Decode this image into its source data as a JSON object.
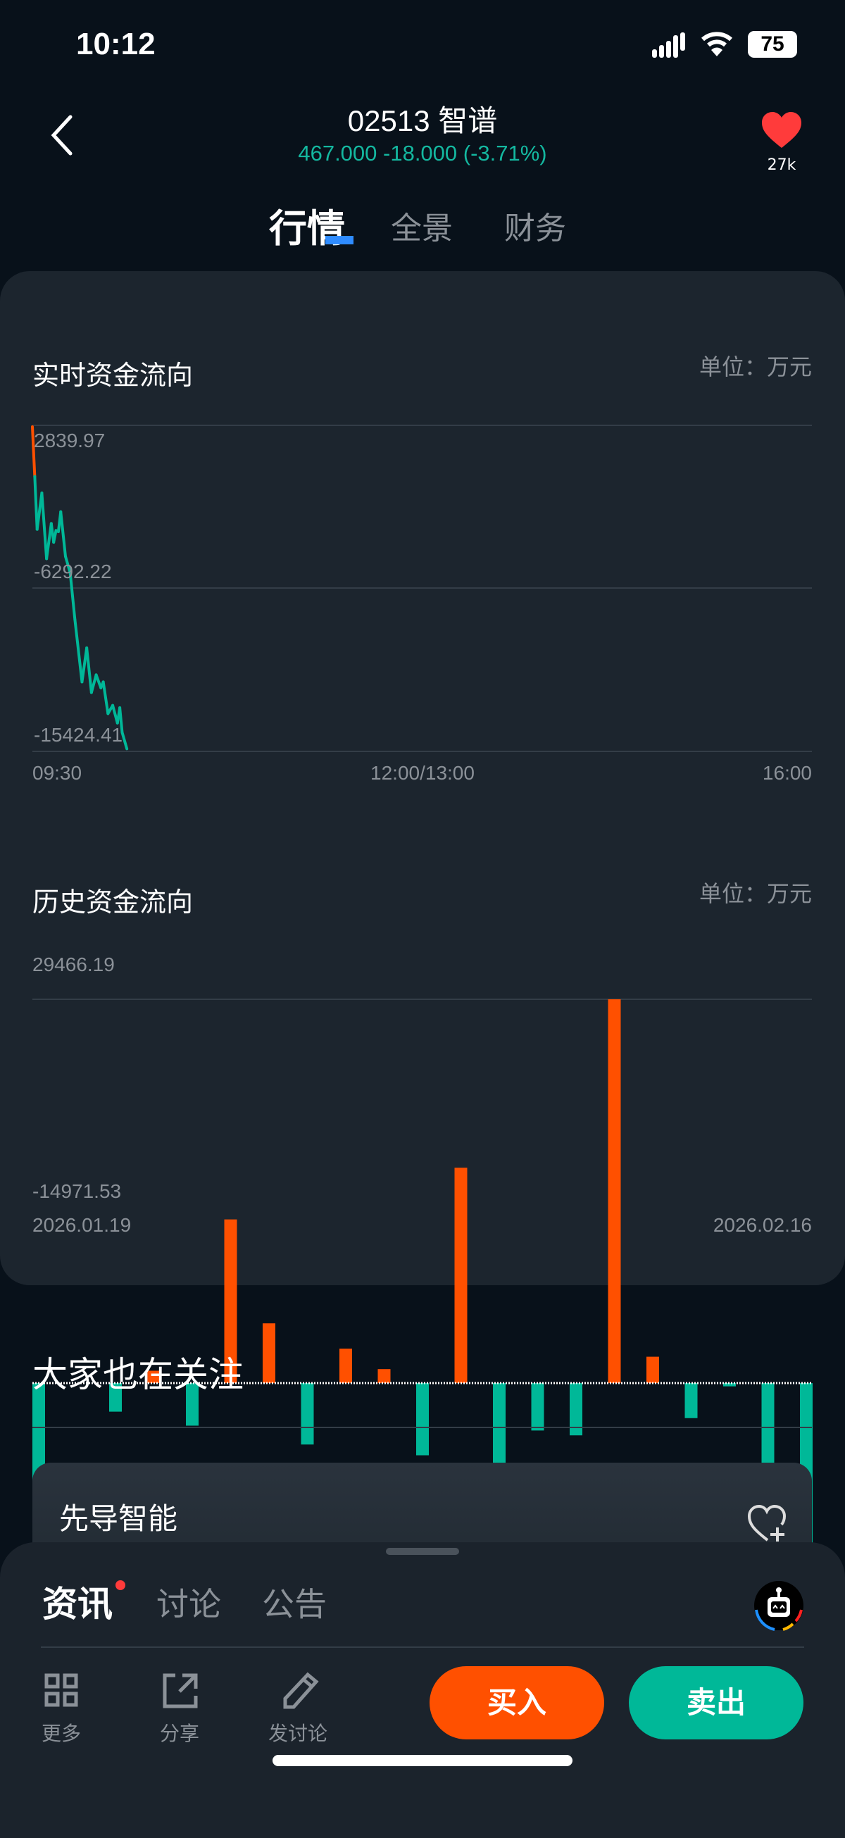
{
  "status_bar": {
    "time": "10:12",
    "battery": "75"
  },
  "header": {
    "title": "02513 智谱",
    "quote": "467.000 -18.000 (-3.71%)",
    "favorite_count": "27k",
    "tabs": [
      {
        "label": "行情",
        "active": true
      },
      {
        "label": "全景"
      },
      {
        "label": "财务"
      }
    ]
  },
  "colors": {
    "up": "#ff5000",
    "down": "#00b898",
    "accent": "#2f8cff",
    "background": "#08111a",
    "card": "#1c252e"
  },
  "realtime": {
    "title": "实时资金流向",
    "unit": "单位：万元"
  },
  "history": {
    "title": "历史资金流向",
    "unit": "单位：万元"
  },
  "chart_data": [
    {
      "type": "line",
      "title": "实时资金流向",
      "y_ticks": [
        "2839.97",
        "-6292.22",
        "-15424.41"
      ],
      "ylim": [
        -15424.41,
        2839.97
      ],
      "x_ticks": [
        "09:30",
        "12:00/13:00",
        "16:00"
      ],
      "x_range": [
        "09:30",
        "16:00"
      ],
      "grid": true,
      "points": [
        [
          "09:30",
          2761
        ],
        [
          "09:31",
          -27
        ],
        [
          "09:32",
          -2986
        ],
        [
          "09:34",
          -947
        ],
        [
          "09:36",
          -4630
        ],
        [
          "09:38",
          -2657
        ],
        [
          "09:39",
          -3709
        ],
        [
          "09:40",
          -3051
        ],
        [
          "09:41",
          -3117
        ],
        [
          "09:42",
          -2000
        ],
        [
          "09:44",
          -4498
        ],
        [
          "09:46",
          -5418
        ],
        [
          "09:48",
          -8048
        ],
        [
          "09:51",
          -11533
        ],
        [
          "09:53",
          -9627
        ],
        [
          "09:55",
          -12125
        ],
        [
          "09:57",
          -11138
        ],
        [
          "09:59",
          -11862
        ],
        [
          "10:00",
          -11533
        ],
        [
          "10:02",
          -13308
        ],
        [
          "10:04",
          -12848
        ],
        [
          "10:06",
          -13834
        ],
        [
          "10:07",
          -12980
        ],
        [
          "10:08",
          -14360
        ],
        [
          "10:10",
          -15281
        ]
      ]
    },
    {
      "type": "bar",
      "title": "历史资金流向",
      "y_ticks": [
        "29466.19",
        "-14971.53"
      ],
      "ylim": [
        -14971.53,
        29466.19
      ],
      "x_ticks": [
        "2026.01.19",
        "2026.02.16"
      ],
      "grid": true,
      "values": [
        -10707,
        0,
        -2191,
        951,
        -3266,
        12567,
        4589,
        -4713,
        2646,
        1075,
        -5540,
        16536,
        -11120,
        -3638,
        -4010,
        29466.19,
        2026,
        -2687,
        -248,
        -12071,
        -14971.53
      ]
    }
  ],
  "follow": {
    "title": "大家也在关注",
    "items": [
      {
        "name": "先导智能"
      }
    ]
  },
  "sheet": {
    "tabs": [
      {
        "label": "资讯",
        "active": true,
        "badge": true
      },
      {
        "label": "讨论"
      },
      {
        "label": "公告"
      }
    ],
    "tools": [
      {
        "label": "更多",
        "icon": "grid-icon"
      },
      {
        "label": "分享",
        "icon": "share-icon"
      },
      {
        "label": "发讨论",
        "icon": "pencil-icon"
      }
    ],
    "buy_label": "买入",
    "sell_label": "卖出"
  }
}
